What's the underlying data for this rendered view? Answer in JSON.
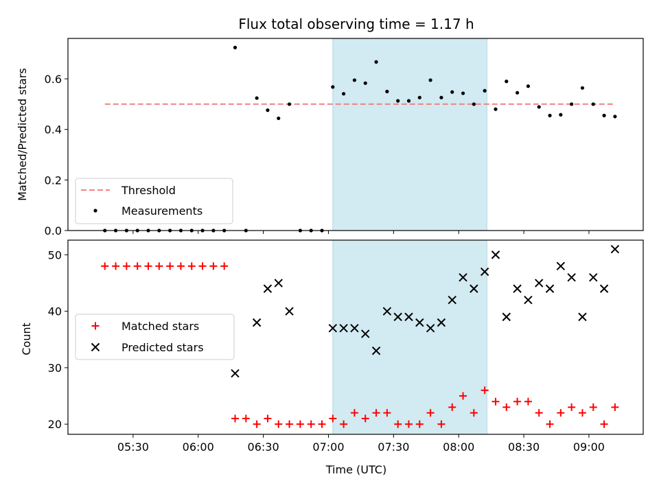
{
  "chart_data": [
    {
      "type": "scatter",
      "title": "Flux total observing time = 1.17 h",
      "ylabel": "Matched/Predicted stars",
      "ylim": [
        0,
        0.76
      ],
      "yticks": [
        "0.0",
        "0.2",
        "0.4",
        "0.6"
      ],
      "ytick_values": [
        0.0,
        0.2,
        0.4,
        0.6
      ],
      "shaded_span": {
        "start": "07:02",
        "end": "08:13",
        "color": "#add8e6"
      },
      "threshold": {
        "name": "Threshold",
        "value": 0.5,
        "color": "#f08080",
        "style": "dashed"
      },
      "legend": {
        "position": "lower-left",
        "entries": [
          "Threshold",
          "Measurements"
        ]
      },
      "series": [
        {
          "name": "Measurements",
          "marker": "dot",
          "color": "#000000",
          "x": [
            "05:17",
            "05:22",
            "05:27",
            "05:32",
            "05:37",
            "05:42",
            "05:47",
            "05:52",
            "05:57",
            "06:02",
            "06:07",
            "06:12",
            "06:17",
            "06:22",
            "06:27",
            "06:32",
            "06:37",
            "06:42",
            "06:47",
            "06:52",
            "06:57",
            "07:02",
            "07:07",
            "07:12",
            "07:17",
            "07:22",
            "07:27",
            "07:32",
            "07:37",
            "07:42",
            "07:47",
            "07:52",
            "07:57",
            "08:02",
            "08:07",
            "08:12",
            "08:17",
            "08:22",
            "08:27",
            "08:32",
            "08:37",
            "08:42",
            "08:47",
            "08:52",
            "08:57",
            "09:02",
            "09:07",
            "09:12"
          ],
          "y": [
            0,
            0,
            0,
            0,
            0,
            0,
            0,
            0,
            0,
            0,
            0,
            0,
            0.724,
            0,
            0.524,
            0.476,
            0.444,
            0.5,
            0,
            0,
            0,
            0.568,
            0.541,
            0.595,
            0.583,
            0.667,
            0.55,
            0.513,
            0.513,
            0.526,
            0.595,
            0.526,
            0.548,
            0.543,
            0.5,
            0.553,
            0.48,
            0.59,
            0.545,
            0.571,
            0.489,
            0.455,
            0.458,
            0.5,
            0.564,
            0.5,
            0.455,
            0.451
          ]
        }
      ]
    },
    {
      "type": "scatter",
      "xlabel": "Time (UTC)",
      "ylabel": "Count",
      "ylim": [
        18.2,
        52.6
      ],
      "yticks": [
        "20",
        "30",
        "40",
        "50"
      ],
      "ytick_values": [
        20,
        30,
        40,
        50
      ],
      "xticks": [
        "05:30",
        "06:00",
        "06:30",
        "07:00",
        "07:30",
        "08:00",
        "08:30",
        "09:00"
      ],
      "xtick_values": [
        "05:30",
        "06:00",
        "06:30",
        "07:00",
        "07:30",
        "08:00",
        "08:30",
        "09:00"
      ],
      "xlim": [
        "05:00",
        "09:25"
      ],
      "shaded_span": {
        "start": "07:02",
        "end": "08:13",
        "color": "#add8e6"
      },
      "legend": {
        "position": "center-left",
        "entries": [
          "Matched stars",
          "Predicted stars"
        ]
      },
      "series": [
        {
          "name": "Matched stars",
          "marker": "plus",
          "color": "#ff0000",
          "x": [
            "05:17",
            "05:22",
            "05:27",
            "05:32",
            "05:37",
            "05:42",
            "05:47",
            "05:52",
            "05:57",
            "06:02",
            "06:07",
            "06:12",
            "06:17",
            "06:22",
            "06:27",
            "06:32",
            "06:37",
            "06:42",
            "06:47",
            "06:52",
            "06:57",
            "07:02",
            "07:07",
            "07:12",
            "07:17",
            "07:22",
            "07:27",
            "07:32",
            "07:37",
            "07:42",
            "07:47",
            "07:52",
            "07:57",
            "08:02",
            "08:07",
            "08:12",
            "08:17",
            "08:22",
            "08:27",
            "08:32",
            "08:37",
            "08:42",
            "08:47",
            "08:52",
            "08:57",
            "09:02",
            "09:07",
            "09:12"
          ],
          "y": [
            48,
            48,
            48,
            48,
            48,
            48,
            48,
            48,
            48,
            48,
            48,
            48,
            21,
            21,
            20,
            21,
            20,
            20,
            20,
            20,
            20,
            21,
            20,
            22,
            21,
            22,
            22,
            20,
            20,
            20,
            22,
            20,
            23,
            25,
            22,
            26,
            24,
            23,
            24,
            24,
            22,
            20,
            22,
            23,
            22,
            23,
            20,
            23
          ]
        },
        {
          "name": "Predicted stars",
          "marker": "x",
          "color": "#000000",
          "x": [
            "06:17",
            "06:27",
            "06:32",
            "06:37",
            "06:42",
            "07:02",
            "07:07",
            "07:12",
            "07:17",
            "07:22",
            "07:27",
            "07:32",
            "07:37",
            "07:42",
            "07:47",
            "07:52",
            "07:57",
            "08:02",
            "08:07",
            "08:12",
            "08:17",
            "08:22",
            "08:27",
            "08:32",
            "08:37",
            "08:42",
            "08:47",
            "08:52",
            "08:57",
            "09:02",
            "09:07",
            "09:12"
          ],
          "y": [
            29,
            38,
            44,
            45,
            40,
            37,
            37,
            37,
            36,
            33,
            40,
            39,
            39,
            38,
            37,
            38,
            42,
            46,
            44,
            47,
            50,
            39,
            44,
            42,
            45,
            44,
            48,
            46,
            39,
            46,
            44,
            51
          ]
        }
      ]
    }
  ]
}
